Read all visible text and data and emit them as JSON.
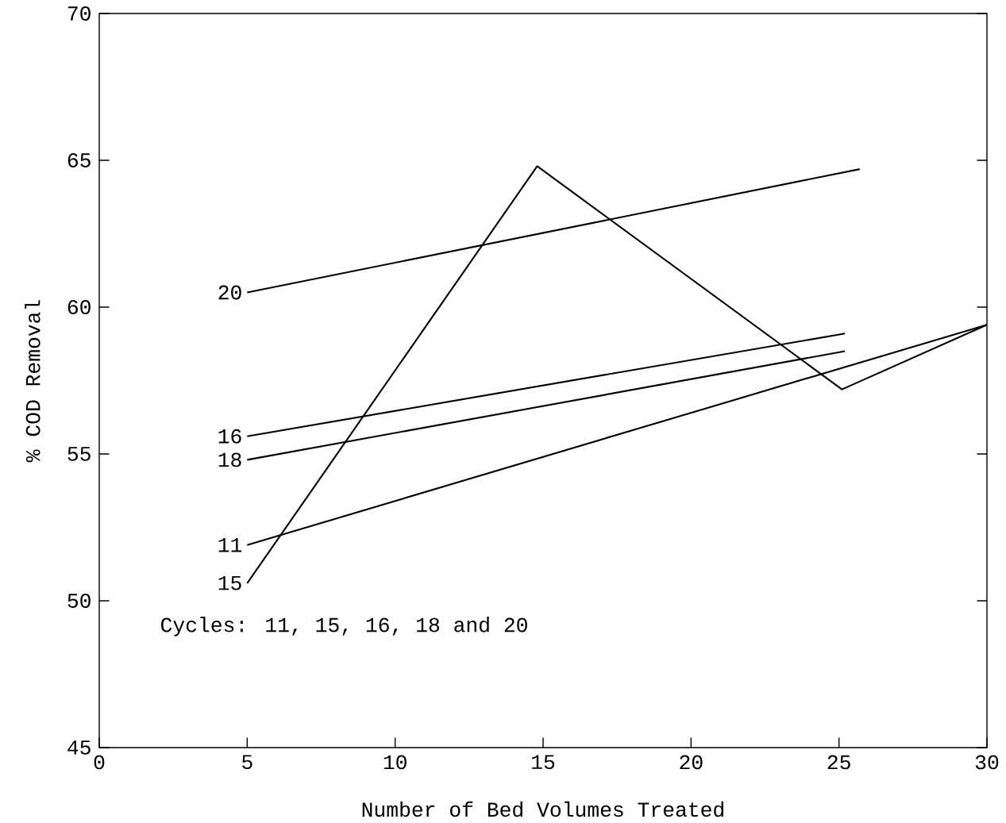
{
  "chart_data": {
    "type": "line",
    "xlabel": "Number of Bed Volumes Treated",
    "ylabel": "% COD Removal",
    "xlim": [
      0,
      30
    ],
    "xticks": [
      0,
      5,
      10,
      15,
      20,
      25,
      30
    ],
    "ylim": [
      45,
      70
    ],
    "yticks": [
      45,
      50,
      55,
      60,
      65,
      70
    ],
    "color": "#000000",
    "grid": false,
    "annotations": [
      "Cycles:  11, 15, 16, 18 and 20"
    ],
    "series": [
      {
        "name": "20",
        "x": [
          5,
          25.7
        ],
        "values": [
          60.5,
          64.7
        ]
      },
      {
        "name": "16",
        "x": [
          5,
          25.2
        ],
        "values": [
          55.6,
          59.1
        ]
      },
      {
        "name": "18",
        "x": [
          5,
          25.2
        ],
        "values": [
          54.8,
          58.5
        ]
      },
      {
        "name": "11",
        "x": [
          5,
          30
        ],
        "values": [
          51.9,
          59.4
        ]
      },
      {
        "name": "15",
        "x": [
          5,
          14.8,
          25.1,
          30
        ],
        "values": [
          50.6,
          64.8,
          57.2,
          59.4
        ]
      }
    ]
  }
}
